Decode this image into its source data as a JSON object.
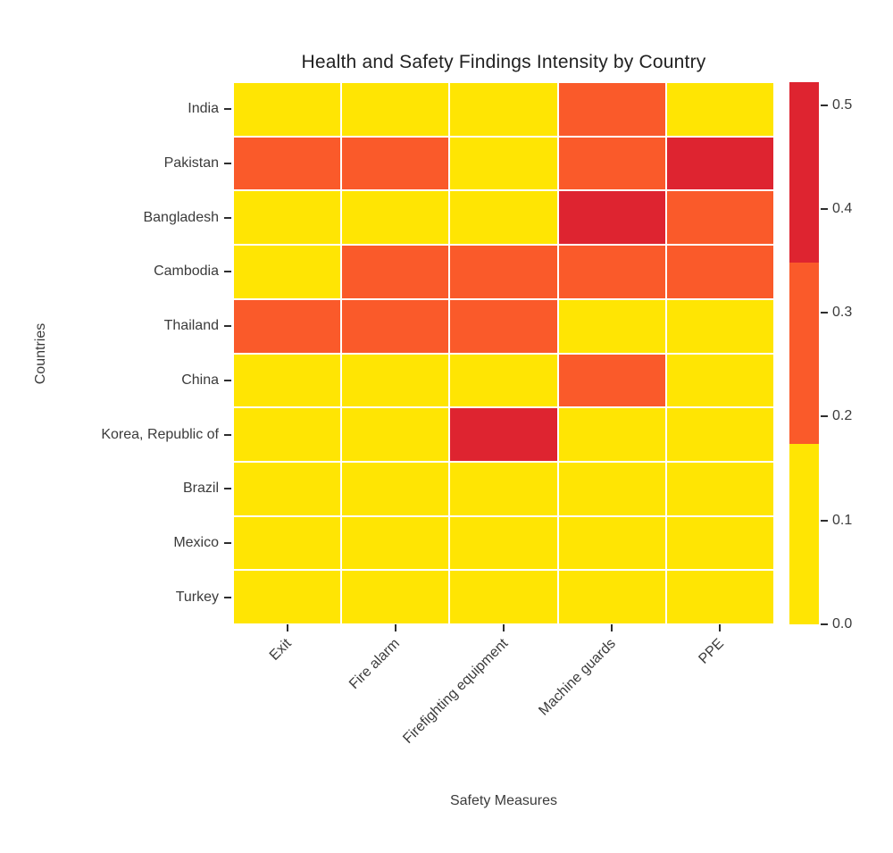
{
  "title": "Health and Safety Findings Intensity by Country",
  "chart_data": {
    "type": "heatmap",
    "title": "Health and Safety Findings Intensity by Country",
    "xlabel": "Safety Measures",
    "ylabel": "Countries",
    "x_categories": [
      "Exit",
      "Fire alarm",
      "Firefighting equipment",
      "Machine guards",
      "PPE"
    ],
    "y_categories": [
      "India",
      "Pakistan",
      "Bangladesh",
      "Cambodia",
      "Thailand",
      "China",
      "Korea, Republic of",
      "Brazil",
      "Mexico",
      "Turkey"
    ],
    "values": [
      [
        0.09,
        0.09,
        0.09,
        0.26,
        0.09
      ],
      [
        0.26,
        0.26,
        0.09,
        0.26,
        0.45
      ],
      [
        0.09,
        0.09,
        0.09,
        0.45,
        0.26
      ],
      [
        0.09,
        0.26,
        0.26,
        0.26,
        0.26
      ],
      [
        0.26,
        0.26,
        0.26,
        0.09,
        0.09
      ],
      [
        0.09,
        0.09,
        0.09,
        0.26,
        0.09
      ],
      [
        0.09,
        0.09,
        0.45,
        0.09,
        0.09
      ],
      [
        0.09,
        0.09,
        0.09,
        0.09,
        0.09
      ],
      [
        0.09,
        0.09,
        0.09,
        0.09,
        0.09
      ],
      [
        0.09,
        0.09,
        0.09,
        0.09,
        0.09
      ]
    ],
    "vmin": 0.0,
    "vmax": 0.522,
    "color_bins": [
      {
        "upto": 0.174,
        "color": "#FFE503",
        "level": "low"
      },
      {
        "upto": 0.348,
        "color": "#FA5A2A",
        "level": "medium"
      },
      {
        "upto": 0.522,
        "color": "#DE2430",
        "level": "high"
      }
    ],
    "colorbar_ticks": [
      {
        "value": 0.0,
        "label": "0.0"
      },
      {
        "value": 0.1,
        "label": "0.1"
      },
      {
        "value": 0.2,
        "label": "0.2"
      },
      {
        "value": 0.3,
        "label": "0.3"
      },
      {
        "value": 0.4,
        "label": "0.4"
      },
      {
        "value": 0.5,
        "label": "0.5"
      }
    ],
    "legend_position": "right",
    "grid": false,
    "background": "#ffffff",
    "cell_gap_color": "#ffffff",
    "text_color": "#3b3b3b"
  }
}
